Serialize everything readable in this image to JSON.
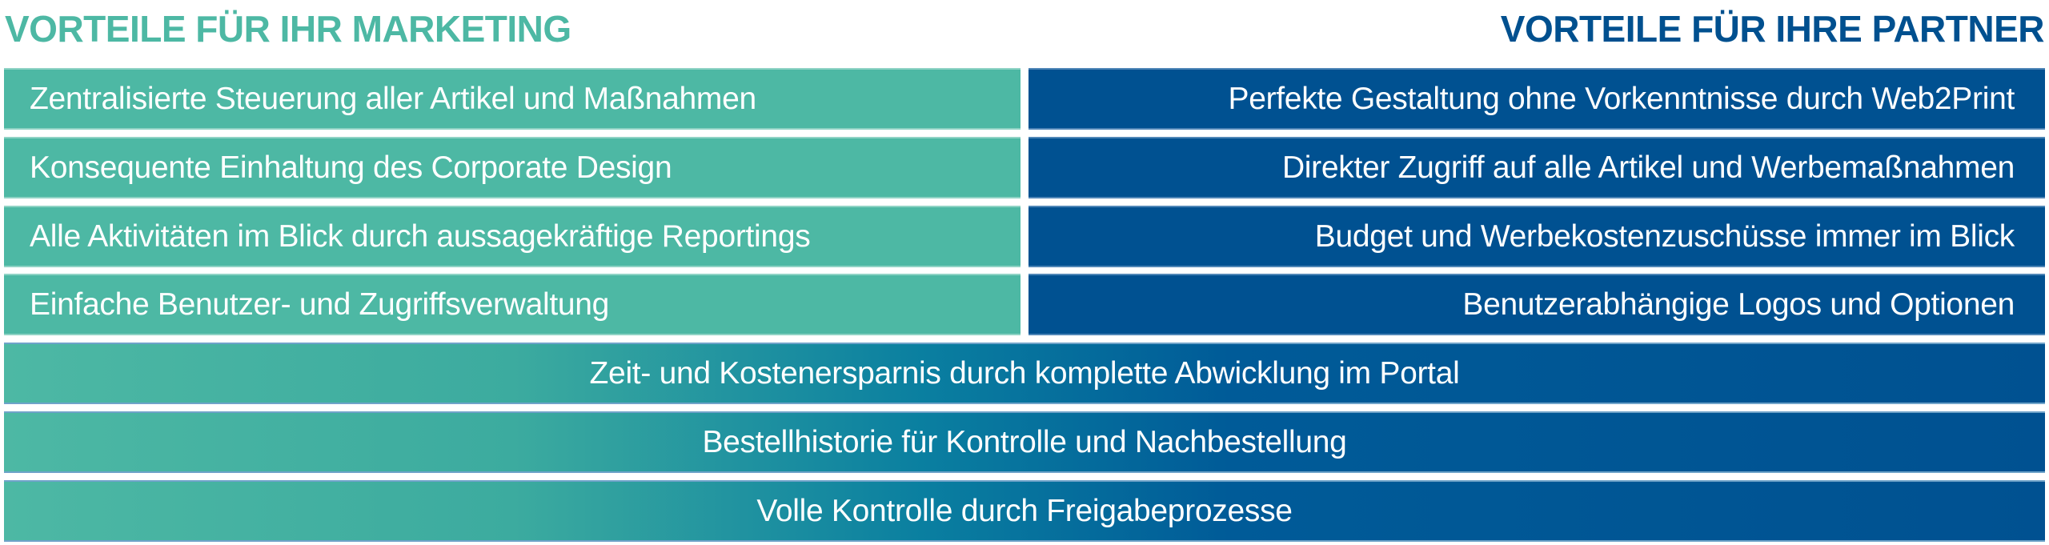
{
  "headings": {
    "marketing": "VORTEILE FÜR IHR MARKETING",
    "partner": "VORTEILE FÜR IHRE PARTNER"
  },
  "marketing_items": [
    "Zentralisierte Steuerung aller Artikel und Maßnahmen",
    "Konsequente Einhaltung des Corporate Design",
    "Alle Aktivitäten im Blick durch aussagekräftige Reportings",
    "Einfache Benutzer- und Zugriffsverwaltung"
  ],
  "partner_items": [
    "Perfekte Gestaltung ohne Vorkenntnisse durch Web2Print",
    "Direkter Zugriff auf alle Artikel und Werbemaßnahmen",
    "Budget und Werbekostenzuschüsse immer im Blick",
    "Benutzerabhängige Logos und Optionen"
  ],
  "shared_items": [
    "Zeit- und Kostenersparnis durch komplette Abwicklung im Portal",
    "Bestellhistorie für Kontrolle und Nachbestellung",
    "Volle Kontrolle durch Freigabeprozesse"
  ],
  "colors": {
    "marketing": "#4db8a4",
    "partner": "#005191"
  }
}
